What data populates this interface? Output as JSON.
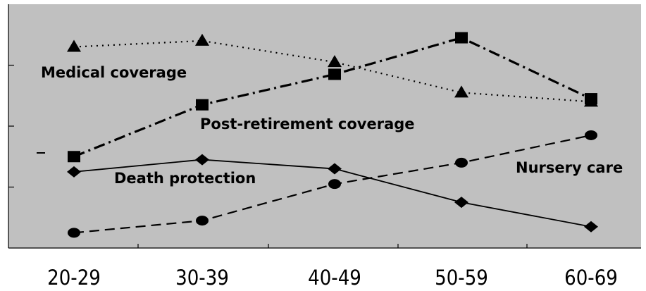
{
  "chart_data": {
    "type": "line",
    "title": "",
    "xlabel": "",
    "ylabel": "",
    "categories": [
      "20-29",
      "30-39",
      "40-49",
      "50-59",
      "60-69"
    ],
    "ylim": [
      0,
      4
    ],
    "grid": false,
    "legend": "inline labels",
    "background_color": "#c0c0c0",
    "series": [
      {
        "name": "Medical coverage",
        "marker": "triangle",
        "line_style": "dotted",
        "values": [
          3.3,
          3.4,
          3.05,
          2.55,
          2.4
        ]
      },
      {
        "name": "Post-retirement coverage",
        "marker": "square",
        "line_style": "dash-dot",
        "values": [
          1.5,
          2.35,
          2.85,
          3.45,
          2.45
        ]
      },
      {
        "name": "Death protection",
        "marker": "diamond",
        "line_style": "solid",
        "values": [
          1.25,
          1.45,
          1.3,
          0.75,
          0.35
        ]
      },
      {
        "name": "Nursery care",
        "marker": "circle",
        "line_style": "dashed",
        "values": [
          0.25,
          0.45,
          1.05,
          1.4,
          1.85
        ]
      }
    ]
  }
}
